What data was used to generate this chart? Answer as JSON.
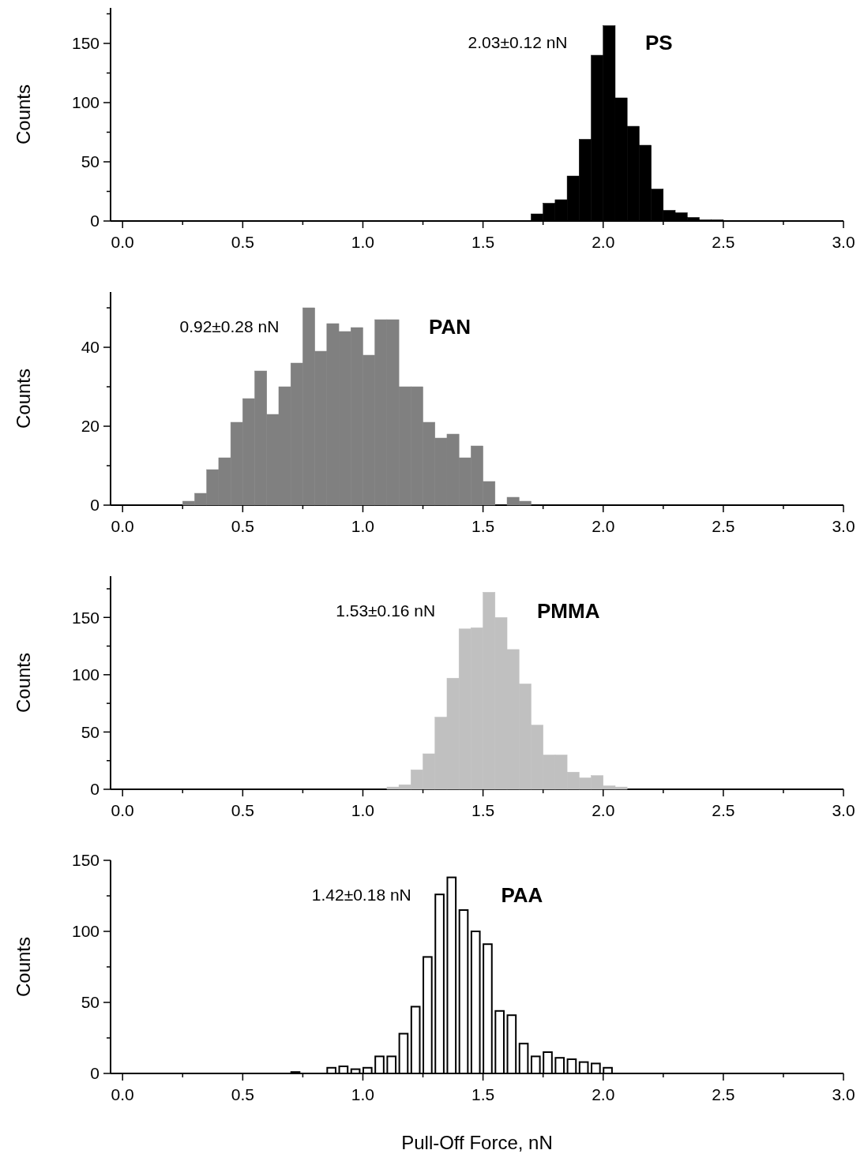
{
  "chart_data": [
    {
      "type": "histogram",
      "title": "PS",
      "annotations": [
        "2.03±0.12 nN"
      ],
      "ylabel": "Counts",
      "color": "#000000",
      "bins": [
        1.7,
        1.75,
        1.8,
        1.85,
        1.9,
        1.95,
        2.0,
        2.05,
        2.1,
        2.15,
        2.2,
        2.25,
        2.3,
        2.35,
        2.4,
        2.45,
        2.5
      ],
      "values": [
        6,
        15,
        18,
        38,
        69,
        140,
        165,
        104,
        80,
        64,
        27,
        9,
        7,
        3,
        1,
        1
      ],
      "xlim": [
        -0.05,
        3.0
      ],
      "xticks": [
        {
          "value": 0,
          "label": "0.0"
        },
        {
          "value": 0.25,
          "label": null
        },
        {
          "value": 0.5,
          "label": "0.5"
        },
        {
          "value": 0.75,
          "label": null
        },
        {
          "value": 1,
          "label": "1.0"
        },
        {
          "value": 1.25,
          "label": null
        },
        {
          "value": 1.5,
          "label": "1.5"
        },
        {
          "value": 1.75,
          "label": null
        },
        {
          "value": 2,
          "label": "2.0"
        },
        {
          "value": 2.25,
          "label": null
        },
        {
          "value": 2.5,
          "label": "2.5"
        },
        {
          "value": 2.75,
          "label": null
        },
        {
          "value": 3,
          "label": "3.0"
        }
      ],
      "ylim": [
        0,
        180
      ],
      "yticks": [
        0,
        {
          "value": 25,
          "label": null
        },
        50,
        {
          "value": 75,
          "label": null
        },
        100,
        {
          "value": 125,
          "label": null
        },
        150,
        {
          "value": 175,
          "label": null
        }
      ]
    },
    {
      "type": "histogram",
      "title": "PAN",
      "annotations": [
        "0.92±0.28 nN"
      ],
      "ylabel": "Counts",
      "color": "#808080",
      "bins": [
        0.25,
        0.3,
        0.35,
        0.4,
        0.45,
        0.5,
        0.55,
        0.6,
        0.65,
        0.7,
        0.75,
        0.8,
        0.85,
        0.9,
        0.95,
        1.0,
        1.05,
        1.1,
        1.15,
        1.2,
        1.25,
        1.3,
        1.35,
        1.4,
        1.45,
        1.5,
        1.55,
        1.6,
        1.65,
        1.7
      ],
      "values": [
        1,
        3,
        9,
        12,
        21,
        27,
        34,
        23,
        30,
        36,
        50,
        39,
        46,
        44,
        45,
        38,
        47,
        47,
        30,
        30,
        21,
        17,
        18,
        12,
        15,
        6,
        0,
        2,
        1
      ],
      "xlim": [
        -0.05,
        3.0
      ],
      "xticks": [
        {
          "value": 0,
          "label": "0.0"
        },
        {
          "value": 0.25,
          "label": null
        },
        {
          "value": 0.5,
          "label": "0.5"
        },
        {
          "value": 0.75,
          "label": null
        },
        {
          "value": 1,
          "label": "1.0"
        },
        {
          "value": 1.25,
          "label": null
        },
        {
          "value": 1.5,
          "label": "1.5"
        },
        {
          "value": 1.75,
          "label": null
        },
        {
          "value": 2,
          "label": "2.0"
        },
        {
          "value": 2.25,
          "label": null
        },
        {
          "value": 2.5,
          "label": "2.5"
        },
        {
          "value": 2.75,
          "label": null
        },
        {
          "value": 3,
          "label": "3.0"
        }
      ],
      "ylim": [
        0,
        54
      ],
      "yticks": [
        0,
        {
          "value": 10,
          "label": null
        },
        20,
        {
          "value": 30,
          "label": null
        },
        40,
        {
          "value": 50,
          "label": null
        }
      ]
    },
    {
      "type": "histogram",
      "title": "PMMA",
      "annotations": [
        "1.53±0.16 nN"
      ],
      "ylabel": "Counts",
      "color": "#c0c0c0",
      "bins": [
        1.1,
        1.15,
        1.2,
        1.25,
        1.3,
        1.35,
        1.4,
        1.45,
        1.5,
        1.55,
        1.6,
        1.65,
        1.7,
        1.75,
        1.8,
        1.85,
        1.9,
        1.95,
        2.0,
        2.05,
        2.1
      ],
      "values": [
        2,
        4,
        17,
        31,
        63,
        97,
        140,
        141,
        172,
        150,
        122,
        92,
        56,
        30,
        30,
        15,
        10,
        12,
        3,
        2
      ],
      "xlim": [
        -0.05,
        3.0
      ],
      "xticks": [
        {
          "value": 0,
          "label": "0.0"
        },
        {
          "value": 0.25,
          "label": null
        },
        {
          "value": 0.5,
          "label": "0.5"
        },
        {
          "value": 0.75,
          "label": null
        },
        {
          "value": 1,
          "label": "1.0"
        },
        {
          "value": 1.25,
          "label": null
        },
        {
          "value": 1.5,
          "label": "1.5"
        },
        {
          "value": 1.75,
          "label": null
        },
        {
          "value": 2,
          "label": "2.0"
        },
        {
          "value": 2.25,
          "label": null
        },
        {
          "value": 2.5,
          "label": "2.5"
        },
        {
          "value": 2.75,
          "label": null
        },
        {
          "value": 3,
          "label": "3.0"
        }
      ],
      "ylim": [
        0,
        186
      ],
      "yticks": [
        0,
        {
          "value": 25,
          "label": null
        },
        50,
        {
          "value": 75,
          "label": null
        },
        100,
        {
          "value": 125,
          "label": null
        },
        150,
        {
          "value": 175,
          "label": null
        }
      ]
    },
    {
      "type": "histogram",
      "title": "PAA",
      "annotations": [
        "1.42±0.18 nN"
      ],
      "ylabel": "Counts",
      "xlabel": "Pull-Off Force, nN",
      "color": "#ffffff",
      "bins": [
        0.7,
        0.75,
        0.8,
        0.85,
        0.9,
        0.95,
        1.0,
        1.05,
        1.1,
        1.15,
        1.2,
        1.25,
        1.3,
        1.35,
        1.4,
        1.45,
        1.5,
        1.55,
        1.6,
        1.65,
        1.7,
        1.75,
        1.8,
        1.85,
        1.9,
        1.95,
        2.0,
        2.05
      ],
      "values": [
        1,
        0,
        0,
        4,
        5,
        3,
        4,
        12,
        12,
        28,
        47,
        82,
        126,
        138,
        115,
        100,
        91,
        44,
        41,
        21,
        12,
        15,
        11,
        10,
        8,
        7,
        4
      ],
      "xlim": [
        -0.05,
        3.0
      ],
      "xticks": [
        {
          "value": 0,
          "label": "0.0"
        },
        {
          "value": 0.25,
          "label": null
        },
        {
          "value": 0.5,
          "label": "0.5"
        },
        {
          "value": 0.75,
          "label": null
        },
        {
          "value": 1,
          "label": "1.0"
        },
        {
          "value": 1.25,
          "label": null
        },
        {
          "value": 1.5,
          "label": "1.5"
        },
        {
          "value": 1.75,
          "label": null
        },
        {
          "value": 2,
          "label": "2.0"
        },
        {
          "value": 2.25,
          "label": null
        },
        {
          "value": 2.5,
          "label": "2.5"
        },
        {
          "value": 2.75,
          "label": null
        },
        {
          "value": 3,
          "label": "3.0"
        }
      ],
      "ylim": [
        0,
        150
      ],
      "yticks": [
        0,
        {
          "value": 25,
          "label": null
        },
        50,
        {
          "value": 75,
          "label": null
        },
        100,
        {
          "value": 125,
          "label": null
        },
        150
      ]
    }
  ]
}
